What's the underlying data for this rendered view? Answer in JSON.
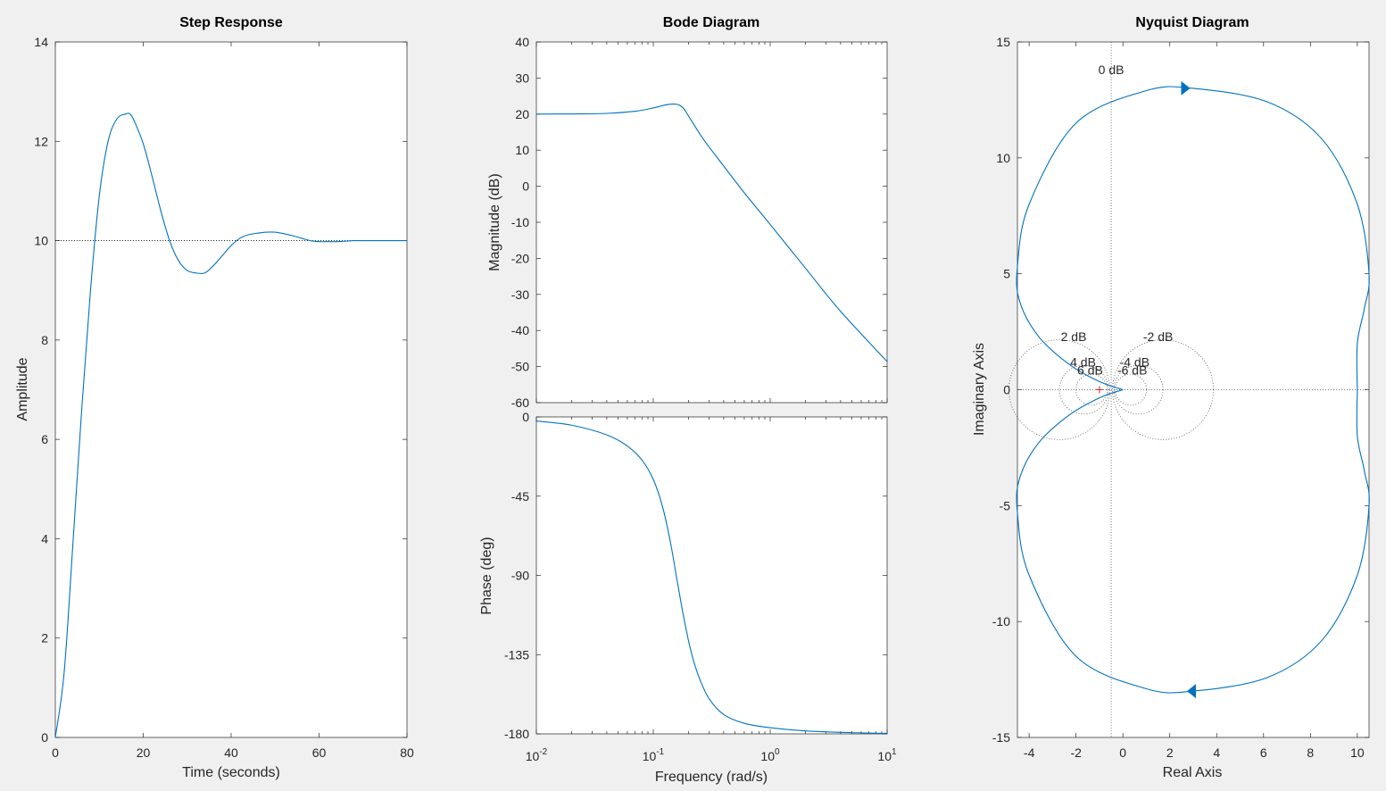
{
  "chart_data": [
    {
      "type": "line",
      "title": "Step Response",
      "xlabel": "Time (seconds)",
      "ylabel": "Amplitude",
      "xlim": [
        0,
        80
      ],
      "ylim": [
        0,
        14
      ],
      "xticks": [
        "0",
        "20",
        "40",
        "60",
        "80"
      ],
      "yticks": [
        "0",
        "2",
        "4",
        "6",
        "8",
        "10",
        "12",
        "14"
      ],
      "steady_state": 10,
      "series": [
        {
          "x": [
            0,
            2,
            4,
            6,
            8,
            10,
            12,
            14,
            16,
            17,
            18,
            20,
            22,
            24,
            26,
            28,
            30,
            32,
            34,
            36,
            38,
            40,
            42,
            44,
            46,
            48,
            50,
            52,
            54,
            56,
            58,
            60,
            62,
            64,
            66,
            68,
            70,
            72,
            74,
            76,
            78,
            80
          ],
          "y": [
            0,
            1.3,
            3.9,
            6.6,
            9.0,
            10.9,
            12.0,
            12.45,
            12.55,
            12.55,
            12.4,
            11.95,
            11.3,
            10.6,
            10.0,
            9.6,
            9.4,
            9.35,
            9.35,
            9.5,
            9.7,
            9.9,
            10.05,
            10.12,
            10.15,
            10.17,
            10.17,
            10.14,
            10.1,
            10.05,
            10.0,
            9.98,
            9.98,
            9.98,
            9.99,
            10.0,
            10.0,
            10.0,
            10.0,
            10.0,
            10.0,
            10.0
          ]
        }
      ]
    },
    {
      "type": "line",
      "title": "Bode Diagram",
      "ylabel": "Magnitude (dB)",
      "xscale": "log",
      "xlim": [
        0.01,
        10
      ],
      "ylim": [
        -60,
        40
      ],
      "yticks": [
        "40",
        "30",
        "20",
        "10",
        "0",
        "-10",
        "-20",
        "-30",
        "-40",
        "-50",
        "-60"
      ],
      "series": [
        {
          "x": [
            0.01,
            0.02,
            0.04,
            0.07,
            0.1,
            0.13,
            0.16,
            0.18,
            0.2,
            0.25,
            0.3,
            0.4,
            0.6,
            1,
            2,
            4,
            10
          ],
          "y": [
            20,
            20.04,
            20.2,
            20.8,
            21.7,
            22.6,
            22.7,
            21.7,
            19.5,
            14.5,
            10.9,
            5.6,
            -1.8,
            -10.6,
            -22.7,
            -34.7,
            -48.6
          ]
        }
      ]
    },
    {
      "type": "line",
      "xlabel": "Frequency  (rad/s)",
      "ylabel": "Phase (deg)",
      "xscale": "log",
      "xlim": [
        0.01,
        10
      ],
      "ylim": [
        -180,
        0
      ],
      "xticks": [
        "10",
        "10",
        "10",
        "10"
      ],
      "xtick_exponents": [
        "-2",
        "-1",
        "0",
        "1"
      ],
      "yticks": [
        "0",
        "-45",
        "-90",
        "-135",
        "-180"
      ],
      "series": [
        {
          "x": [
            0.01,
            0.02,
            0.04,
            0.06,
            0.08,
            0.1,
            0.12,
            0.14,
            0.16,
            0.18,
            0.2,
            0.22,
            0.25,
            0.3,
            0.4,
            0.6,
            1,
            2,
            5,
            10
          ],
          "y": [
            -2.3,
            -4.7,
            -10.2,
            -16.5,
            -24.5,
            -35.5,
            -51,
            -71,
            -93,
            -112,
            -127,
            -138,
            -149,
            -160,
            -169,
            -174,
            -176.5,
            -178.3,
            -179.3,
            -179.7
          ]
        }
      ]
    },
    {
      "type": "line",
      "title": "Nyquist Diagram",
      "xlabel": "Real Axis",
      "ylabel": "Imaginary Axis",
      "xlim": [
        -4.5,
        10.5
      ],
      "ylim": [
        -15,
        15
      ],
      "xticks": [
        "-4",
        "-2",
        "0",
        "2",
        "4",
        "6",
        "8",
        "10"
      ],
      "yticks": [
        "15",
        "10",
        "5",
        "0",
        "-5",
        "-10",
        "-15"
      ],
      "critical_point": [
        -1,
        0
      ],
      "m_circle_labels": [
        "0 dB",
        "2 dB",
        "4 dB",
        "6 dB",
        "-2 dB",
        "-4 dB",
        "-6 dB"
      ],
      "series": [
        {
          "x": [
            10.0,
            10.0,
            10.3,
            10.5,
            10.0,
            8.5,
            6.2,
            3.0,
            1.0,
            -2.0,
            -4.0,
            -4.5,
            -4.4,
            -3.6,
            -2.3,
            -1.0,
            0.0
          ],
          "y": [
            0,
            2.0,
            3.5,
            5.0,
            8.0,
            10.8,
            12.4,
            13.0,
            12.9,
            11.5,
            8.0,
            5.3,
            3.8,
            2.3,
            1.1,
            0.35,
            0
          ]
        }
      ]
    }
  ]
}
